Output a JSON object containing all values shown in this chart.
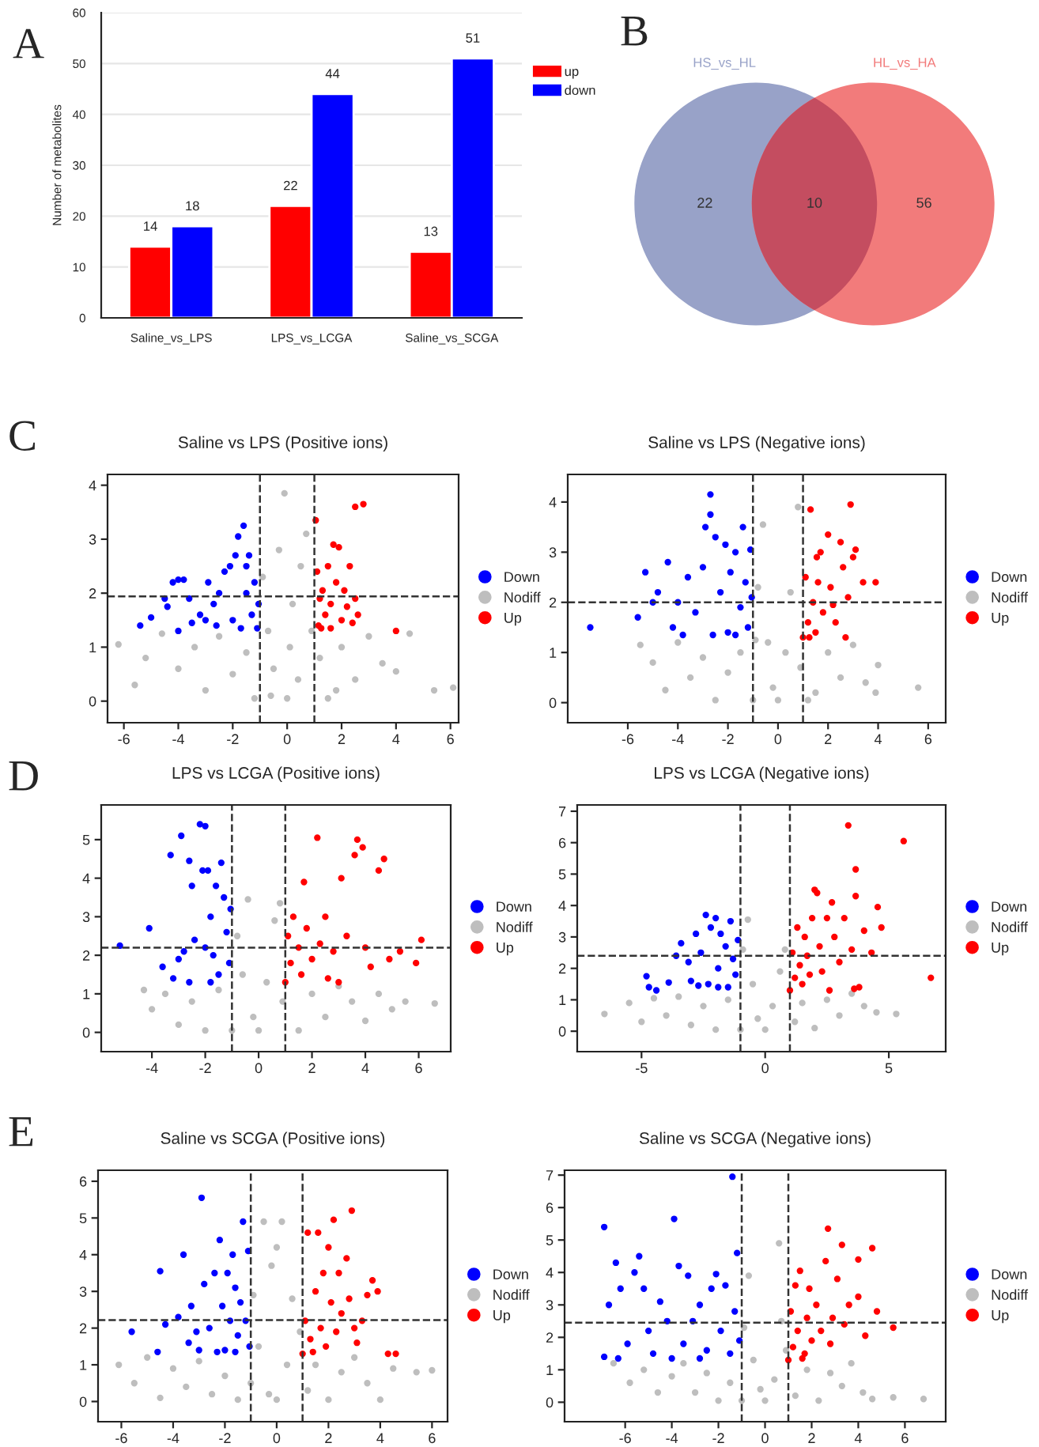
{
  "chart_data": [
    {
      "type": "bar",
      "annotations": [
        "A"
      ],
      "ylabel": "Number of metabolites",
      "categories": [
        "Saline_vs_LPS",
        "LPS_vs_LCGA",
        "Saline_vs_SCGA"
      ],
      "series": [
        {
          "name": "up",
          "color": "#ff0000",
          "values": [
            14,
            22,
            13
          ]
        },
        {
          "name": "down",
          "color": "#0000ff",
          "values": [
            18,
            44,
            51
          ]
        }
      ],
      "ylim": [
        0,
        60
      ],
      "yticks": [
        0,
        10,
        20,
        30,
        40,
        50,
        60
      ],
      "grid": "y",
      "legend": "top right",
      "data_labels": true
    },
    {
      "type": "other",
      "annotations": [
        "B",
        "HS_vs_HL",
        "HL_vs_HA"
      ],
      "categories": [
        null,
        null,
        null
      ],
      "colors": [
        "#98a2c8",
        "#c44d60",
        "#f27b7b"
      ],
      "values": [
        22,
        10,
        56
      ],
      "data_labels": true
    },
    {
      "type": "scatter",
      "title": "Saline vs LPS (Positive ions)",
      "annotations": [
        "C"
      ],
      "xlim": [
        -6.6,
        6.3
      ],
      "xticks": [
        -6,
        -4,
        -2,
        0,
        2,
        4,
        6
      ],
      "ylim": [
        -0.4,
        4.2
      ],
      "yticks": [
        0,
        1,
        2,
        3,
        4
      ],
      "legend": "right",
      "marker": "circle",
      "ref_lines": [
        {
          "axis": "x",
          "value": -1,
          "line_style": "dashed"
        },
        {
          "axis": "x",
          "value": 1,
          "line_style": "dashed"
        },
        {
          "axis": "y",
          "value": 1.94,
          "line_style": "dashed"
        }
      ],
      "series": [
        {
          "name": "Down",
          "color": "#0000ff",
          "x": [
            -5.4,
            -5,
            -4.5,
            -4.4,
            -4.2,
            -4,
            -3.8,
            -3.6,
            -3.5,
            -3.2,
            -2.9,
            -2.7,
            -2.5,
            -2.3,
            -2.1,
            -2,
            -1.9,
            -1.8,
            -1.6,
            -1.5,
            -1.4,
            -1.3,
            -1.2,
            -1.1,
            -1.05,
            -1.7,
            -2.6,
            -3,
            -1.5,
            -4
          ],
          "values": [
            1.4,
            1.55,
            1.9,
            1.75,
            2.2,
            2.25,
            2.25,
            1.9,
            1.45,
            1.6,
            2.2,
            1.8,
            2,
            2.4,
            2.5,
            1.5,
            2.7,
            3.05,
            3.25,
            2,
            2.7,
            1.6,
            2.2,
            1.35,
            1.8,
            1.35,
            1.4,
            1.5,
            2.5,
            1.3
          ]
        },
        {
          "name": "Nodiff",
          "color": "#bebebe",
          "x": [
            -6.2,
            -5.6,
            -5.2,
            -4.6,
            -4,
            -3.4,
            -3,
            -2.5,
            -2,
            -1.5,
            -1.2,
            -0.9,
            -0.7,
            -0.5,
            -0.3,
            -0.1,
            0,
            0.2,
            0.4,
            0.5,
            0.7,
            0.9,
            1.2,
            1.5,
            2,
            2.5,
            3,
            3.5,
            4,
            4.5,
            5.4,
            6.1,
            0.1,
            -0.6,
            1.8
          ],
          "values": [
            1.05,
            0.3,
            0.8,
            1.25,
            0.6,
            1,
            0.2,
            1.2,
            0.5,
            0.9,
            0.05,
            2.3,
            1.3,
            0.6,
            2.8,
            3.85,
            0.05,
            1.8,
            0.4,
            2.5,
            3.1,
            1.3,
            0.8,
            0.05,
            1,
            0.4,
            1.2,
            0.7,
            0.55,
            1.25,
            0.2,
            0.25,
            1,
            0.1,
            0.2
          ]
        },
        {
          "name": "Up",
          "color": "#ff0000",
          "x": [
            1.05,
            1.1,
            1.15,
            1.2,
            1.3,
            1.4,
            1.5,
            1.6,
            1.7,
            1.8,
            1.9,
            2,
            2.1,
            2.2,
            2.3,
            2.5,
            2.5,
            2.6,
            2.8,
            4,
            1.25,
            1.6,
            2.4
          ],
          "values": [
            3.35,
            2.4,
            1.4,
            1.9,
            2.05,
            1.6,
            2.5,
            1.8,
            2.9,
            2.2,
            2.85,
            1.5,
            2.05,
            1.75,
            2.5,
            1.9,
            3.6,
            1.6,
            3.65,
            1.3,
            1.35,
            1.35,
            1.45
          ]
        }
      ]
    },
    {
      "type": "scatter",
      "title": "Saline vs LPS (Negative ions)",
      "xlim": [
        -8.4,
        6.7
      ],
      "xticks": [
        -6,
        -4,
        -2,
        0,
        2,
        4,
        6
      ],
      "ylim": [
        -0.4,
        4.55
      ],
      "yticks": [
        0,
        1,
        2,
        3,
        4
      ],
      "legend": "right",
      "marker": "circle",
      "ref_lines": [
        {
          "axis": "x",
          "value": -1,
          "line_style": "dashed"
        },
        {
          "axis": "x",
          "value": 1,
          "line_style": "dashed"
        },
        {
          "axis": "y",
          "value": 2.0,
          "line_style": "dashed"
        }
      ],
      "series": [
        {
          "name": "Down",
          "color": "#0000ff",
          "x": [
            -7.5,
            -5.6,
            -5.3,
            -5,
            -4.8,
            -4.4,
            -4.2,
            -4,
            -3.6,
            -3.3,
            -3,
            -2.9,
            -2.7,
            -2.7,
            -2.5,
            -2.3,
            -2.1,
            -2,
            -1.9,
            -1.7,
            -1.5,
            -1.4,
            -1.3,
            -1.2,
            -1.1,
            -1.05,
            -3.8,
            -2.6,
            -1.7
          ],
          "values": [
            1.5,
            1.7,
            2.6,
            2,
            2.2,
            2.8,
            1.5,
            2,
            2.5,
            1.8,
            2.7,
            3.5,
            4.15,
            3.75,
            3.3,
            2.2,
            3.15,
            1.4,
            2.6,
            3,
            1.9,
            3.5,
            2.4,
            1.5,
            3.05,
            2.1,
            1.35,
            1.35,
            1.35
          ]
        },
        {
          "name": "Nodiff",
          "color": "#bebebe",
          "x": [
            -5.5,
            -5,
            -4.5,
            -4,
            -3.5,
            -3,
            -2.5,
            -2,
            -1.5,
            -1,
            -0.8,
            -0.6,
            -0.4,
            -0.2,
            0,
            0.3,
            0.5,
            0.8,
            0.9,
            1.5,
            2,
            2.5,
            3,
            3.5,
            3.9,
            4,
            5.6,
            -0.9,
            1.2
          ],
          "values": [
            1.15,
            0.8,
            0.25,
            1.2,
            0.5,
            0.9,
            0.05,
            0.6,
            1,
            0.05,
            2.3,
            3.55,
            1.2,
            0.3,
            0.05,
            1,
            2.2,
            3.9,
            0.7,
            0.2,
            1,
            0.5,
            1.15,
            0.4,
            0.2,
            0.75,
            0.3,
            1.25,
            0.05
          ]
        },
        {
          "name": "Up",
          "color": "#ff0000",
          "x": [
            1,
            1.1,
            1.2,
            1.3,
            1.4,
            1.5,
            1.6,
            1.7,
            1.8,
            2,
            2.1,
            2.3,
            2.5,
            2.6,
            2.7,
            2.8,
            2.9,
            3,
            3.1,
            3.4,
            3.9,
            1.25,
            1.55,
            2.2
          ],
          "values": [
            1.3,
            2.5,
            1.6,
            3.85,
            2,
            1.4,
            2.4,
            3,
            1.8,
            3.35,
            2.3,
            1.6,
            3.2,
            2.7,
            1.3,
            2.1,
            3.95,
            2.9,
            3.05,
            2.4,
            2.4,
            1.3,
            2.9,
            1.95
          ]
        }
      ]
    },
    {
      "type": "scatter",
      "title": "LPS vs LCGA (Positive ions)",
      "annotations": [
        "D"
      ],
      "xlim": [
        -5.9,
        7.2
      ],
      "xticks": [
        -4,
        -2,
        0,
        2,
        4,
        6
      ],
      "ylim": [
        -0.5,
        5.9
      ],
      "yticks": [
        0,
        1,
        2,
        3,
        4,
        5
      ],
      "legend": "right",
      "marker": "circle",
      "ref_lines": [
        {
          "axis": "x",
          "value": -1,
          "line_style": "dashed"
        },
        {
          "axis": "x",
          "value": 1,
          "line_style": "dashed"
        },
        {
          "axis": "y",
          "value": 2.2,
          "line_style": "dashed"
        }
      ],
      "series": [
        {
          "name": "Down",
          "color": "#0000ff",
          "x": [
            -5.2,
            -4.1,
            -3.6,
            -3.3,
            -3.2,
            -2.9,
            -2.8,
            -2.6,
            -2.5,
            -2.4,
            -2.2,
            -2,
            -2.1,
            -1.9,
            -1.8,
            -1.7,
            -1.6,
            -1.5,
            -1.4,
            -1.3,
            -1.2,
            -1.1,
            -1.05,
            -2.6,
            -1.8,
            -3,
            -2
          ],
          "values": [
            2.25,
            2.7,
            1.7,
            4.6,
            1.4,
            5.1,
            2.1,
            4.45,
            3.8,
            2.4,
            5.4,
            5.35,
            4.2,
            4.2,
            3,
            2,
            3.8,
            1.5,
            4.4,
            3.5,
            2.6,
            1.8,
            3.2,
            1.3,
            1.3,
            1.9,
            2.2
          ]
        },
        {
          "name": "Nodiff",
          "color": "#bebebe",
          "x": [
            -4.3,
            -4,
            -3.5,
            -3,
            -2.5,
            -2,
            -1.5,
            -1,
            -0.8,
            -0.6,
            -0.4,
            -0.2,
            0,
            0.3,
            0.6,
            0.8,
            0.9,
            1.5,
            2,
            2.5,
            3,
            3.5,
            4,
            4.5,
            5,
            5.5,
            6.6
          ],
          "values": [
            1.1,
            0.6,
            1,
            0.2,
            0.8,
            0.05,
            1.1,
            0.05,
            2.5,
            1.5,
            3.45,
            0.4,
            0.05,
            1.3,
            2.9,
            3.35,
            0.8,
            0.05,
            1,
            0.4,
            1.2,
            0.8,
            0.3,
            1,
            0.6,
            0.8,
            0.75
          ]
        },
        {
          "name": "Up",
          "color": "#ff0000",
          "x": [
            1,
            1.1,
            1.2,
            1.3,
            1.5,
            1.6,
            1.7,
            1.8,
            2,
            2.2,
            2.3,
            2.5,
            2.8,
            3,
            3.1,
            3.3,
            3.6,
            3.7,
            3.9,
            4,
            4.2,
            4.5,
            4.7,
            4.9,
            5.3,
            5.9,
            6.1,
            2.6
          ],
          "values": [
            1.3,
            2.5,
            1.8,
            3,
            2.2,
            1.5,
            3.9,
            2.7,
            1.9,
            5.05,
            2.3,
            3,
            2.1,
            1.3,
            4,
            2.5,
            4.6,
            5,
            4.8,
            2.2,
            1.7,
            4.2,
            4.5,
            1.9,
            2.1,
            1.8,
            2.4,
            1.4
          ]
        }
      ]
    },
    {
      "type": "scatter",
      "title": "LPS vs LCGA (Negative ions)",
      "xlim": [
        -7.6,
        7.3
      ],
      "xticks": [
        -5,
        0,
        5
      ],
      "ylim": [
        -0.65,
        7.2
      ],
      "yticks": [
        0,
        1,
        2,
        3,
        4,
        5,
        6,
        7
      ],
      "legend": "right",
      "marker": "circle",
      "ref_lines": [
        {
          "axis": "x",
          "value": -1,
          "line_style": "dashed"
        },
        {
          "axis": "x",
          "value": 1,
          "line_style": "dashed"
        },
        {
          "axis": "y",
          "value": 2.4,
          "line_style": "dashed"
        }
      ],
      "series": [
        {
          "name": "Down",
          "color": "#0000ff",
          "x": [
            -4.8,
            -4.7,
            -4.4,
            -3.9,
            -3.6,
            -3.4,
            -3.1,
            -3,
            -2.8,
            -2.6,
            -2.4,
            -2.3,
            -2.2,
            -2,
            -1.9,
            -1.8,
            -1.6,
            -1.5,
            -1.4,
            -1.3,
            -1.2,
            -1.1,
            -2.7,
            -1.9
          ],
          "values": [
            1.75,
            1.4,
            1.3,
            1.55,
            2.4,
            2.8,
            2.2,
            1.6,
            3.1,
            2.5,
            3.7,
            1.5,
            3.3,
            3.6,
            2,
            3.1,
            2.7,
            1.4,
            3.5,
            2.3,
            1.8,
            2.9,
            1.45,
            1.4
          ]
        },
        {
          "name": "Nodiff",
          "color": "#bebebe",
          "x": [
            -6.5,
            -5.5,
            -5,
            -4.5,
            -4,
            -3.5,
            -3,
            -2.5,
            -2,
            -1.5,
            -1,
            -0.9,
            -0.7,
            -0.5,
            -0.3,
            0,
            0.3,
            0.6,
            0.8,
            1.2,
            1.5,
            2,
            2.5,
            3,
            3.5,
            4,
            4.5,
            5.3
          ],
          "values": [
            0.55,
            0.9,
            0.3,
            1.05,
            0.5,
            1.1,
            0.2,
            0.8,
            0.05,
            1,
            0.05,
            2.6,
            3.55,
            1.5,
            0.4,
            0.05,
            0.8,
            1.9,
            2.6,
            0.3,
            0.9,
            0.1,
            1,
            0.5,
            1.2,
            0.8,
            0.6,
            0.55
          ]
        },
        {
          "name": "Up",
          "color": "#ff0000",
          "x": [
            1,
            1.1,
            1.2,
            1.3,
            1.4,
            1.5,
            1.6,
            1.7,
            1.8,
            1.9,
            2,
            2.1,
            2.2,
            2.3,
            2.5,
            2.6,
            2.7,
            2.8,
            3,
            3.2,
            3.36,
            3.5,
            3.66,
            3.66,
            3.8,
            4,
            4.3,
            4.55,
            4.7,
            5.6,
            6.7,
            3.6
          ],
          "values": [
            1.3,
            2.5,
            1.7,
            3.3,
            2.1,
            1.5,
            3,
            2.4,
            1.8,
            3.6,
            4.5,
            4.4,
            2.7,
            1.9,
            3.6,
            1.3,
            4.1,
            3,
            2.2,
            3.6,
            6.55,
            2.6,
            5.15,
            4.3,
            1.4,
            3.2,
            2.5,
            3.95,
            3.3,
            6.05,
            1.7,
            1.35
          ]
        }
      ]
    },
    {
      "type": "scatter",
      "title": "Saline vs SCGA (Positive ions)",
      "annotations": [
        "E"
      ],
      "xlim": [
        -6.9,
        6.6
      ],
      "xticks": [
        -6,
        -4,
        -2,
        0,
        2,
        4,
        6
      ],
      "ylim": [
        -0.55,
        6.3
      ],
      "yticks": [
        0,
        1,
        2,
        3,
        4,
        5,
        6
      ],
      "legend": "right",
      "marker": "circle",
      "ref_lines": [
        {
          "axis": "x",
          "value": -1,
          "line_style": "dashed"
        },
        {
          "axis": "x",
          "value": 1,
          "line_style": "dashed"
        },
        {
          "axis": "y",
          "value": 2.22,
          "line_style": "dashed"
        }
      ],
      "series": [
        {
          "name": "Down",
          "color": "#0000ff",
          "x": [
            -5.6,
            -4.6,
            -4.5,
            -4.3,
            -3.8,
            -3.6,
            -3.4,
            -3.3,
            -3.1,
            -2.9,
            -2.8,
            -2.6,
            -2.4,
            -2.2,
            -2.1,
            -2,
            -1.9,
            -1.8,
            -1.7,
            -1.6,
            -1.5,
            -1.4,
            -1.3,
            -1.2,
            -1.1,
            -1.05,
            -3,
            -2.3,
            -1.6
          ],
          "values": [
            1.9,
            1.35,
            3.55,
            2.1,
            2.3,
            4,
            1.6,
            2.6,
            1.9,
            5.55,
            3.2,
            2,
            3.5,
            4.4,
            2.6,
            1.4,
            3.5,
            2.2,
            4,
            3.1,
            1.8,
            2.7,
            4.9,
            2.2,
            4.1,
            1.5,
            1.4,
            1.35,
            1.35
          ]
        },
        {
          "name": "Nodiff",
          "color": "#bebebe",
          "x": [
            -6.1,
            -5.5,
            -5,
            -4.5,
            -4,
            -3.5,
            -3,
            -2.5,
            -2,
            -1.5,
            -1,
            -0.9,
            -0.7,
            -0.5,
            -0.3,
            -0.2,
            0,
            0,
            0.2,
            0.4,
            0.6,
            0.9,
            1.2,
            1.5,
            2,
            2.5,
            3,
            3.5,
            4,
            4.5,
            5.4,
            6
          ],
          "values": [
            1,
            0.5,
            1.2,
            0.1,
            0.9,
            0.4,
            1.1,
            0.2,
            0.7,
            0.05,
            0.5,
            2.9,
            1.5,
            4.9,
            0.2,
            3.7,
            4.2,
            0.05,
            4.9,
            1,
            2.8,
            1.9,
            0.3,
            1,
            0.05,
            0.8,
            1.2,
            0.5,
            0.05,
            0.9,
            0.8,
            0.85
          ]
        },
        {
          "name": "Up",
          "color": "#ff0000",
          "x": [
            1,
            1.1,
            1.2,
            1.3,
            1.5,
            1.6,
            1.7,
            1.8,
            1.9,
            2,
            2.1,
            2.2,
            2.3,
            2.4,
            2.5,
            2.7,
            2.8,
            2.9,
            3,
            3.1,
            3.3,
            3.5,
            3.7,
            3.9,
            4.3,
            4.6,
            1.4
          ],
          "values": [
            1.3,
            2.2,
            4.6,
            1.7,
            3,
            4.6,
            2,
            3.5,
            1.5,
            4.2,
            2.7,
            4.95,
            1.9,
            3.5,
            2.4,
            3.9,
            2.8,
            5.2,
            2,
            1.6,
            2.2,
            2.9,
            3.3,
            3,
            1.3,
            1.3,
            1.35
          ]
        }
      ]
    },
    {
      "type": "scatter",
      "title": "Saline vs SCGA (Negative ions)",
      "xlim": [
        -8.6,
        7.75
      ],
      "xticks": [
        -6,
        -4,
        -2,
        0,
        2,
        4,
        6
      ],
      "ylim": [
        -0.6,
        7.15
      ],
      "yticks": [
        0,
        1,
        2,
        3,
        4,
        5,
        6,
        7
      ],
      "legend": "right",
      "marker": "circle",
      "ref_lines": [
        {
          "axis": "x",
          "value": -1,
          "line_style": "dashed"
        },
        {
          "axis": "x",
          "value": 1,
          "line_style": "dashed"
        },
        {
          "axis": "y",
          "value": 2.45,
          "line_style": "dashed"
        }
      ],
      "series": [
        {
          "name": "Down",
          "color": "#0000ff",
          "x": [
            -6.9,
            -6.9,
            -6.7,
            -6.4,
            -6.3,
            -6.2,
            -5.9,
            -5.6,
            -5.4,
            -5.2,
            -5,
            -4.8,
            -4.5,
            -4.2,
            -3.9,
            -3.7,
            -3.5,
            -3.3,
            -3.1,
            -2.8,
            -2.5,
            -2.3,
            -2.1,
            -1.9,
            -1.7,
            -1.5,
            -1.4,
            -1.3,
            -1.2,
            -1.1,
            -4,
            -2.8
          ],
          "values": [
            5.4,
            1.4,
            3,
            4.3,
            1.35,
            3.5,
            1.8,
            4,
            4.5,
            3.5,
            2.2,
            1.5,
            3.1,
            2.5,
            5.65,
            4.2,
            1.8,
            3.9,
            2.5,
            3,
            1.6,
            3.5,
            3.95,
            2.2,
            3.6,
            1.5,
            6.95,
            2.8,
            4.6,
            1.9,
            1.35,
            1.35
          ]
        },
        {
          "name": "Nodiff",
          "color": "#bebebe",
          "x": [
            -6.5,
            -5.8,
            -5.2,
            -4.6,
            -4,
            -3.5,
            -3,
            -2.5,
            -2,
            -1.5,
            -1,
            -0.9,
            -0.7,
            -0.5,
            -0.2,
            0,
            0.4,
            0.6,
            0.7,
            0.9,
            1.3,
            1.8,
            2.3,
            2.8,
            3.3,
            3.7,
            4.2,
            4.6,
            6.8,
            5.5
          ],
          "values": [
            1.2,
            0.6,
            1,
            0.3,
            0.8,
            1.2,
            0.3,
            0.9,
            0.05,
            0.6,
            0.05,
            2.3,
            3.9,
            1.3,
            0.4,
            0.05,
            0.7,
            4.9,
            2.5,
            1.6,
            0.2,
            1,
            0.05,
            0.9,
            0.5,
            1.2,
            0.3,
            0.1,
            0.1,
            0.15
          ]
        },
        {
          "name": "Up",
          "color": "#ff0000",
          "x": [
            1,
            1.1,
            1.2,
            1.3,
            1.4,
            1.5,
            1.7,
            1.8,
            1.9,
            2,
            2.2,
            2.4,
            2.6,
            2.7,
            2.8,
            2.9,
            3.1,
            3.3,
            3.4,
            3.6,
            4,
            4,
            4.3,
            4.6,
            4.8,
            5.5,
            1.6
          ],
          "values": [
            1.3,
            2.8,
            1.7,
            3.6,
            2.2,
            4.05,
            1.5,
            2.6,
            3.5,
            1.9,
            3,
            2.2,
            4.35,
            5.35,
            1.8,
            2.6,
            3.8,
            4.85,
            2.4,
            3,
            3.25,
            4.4,
            2.05,
            4.75,
            2.8,
            2.3,
            1.35
          ]
        }
      ]
    }
  ]
}
